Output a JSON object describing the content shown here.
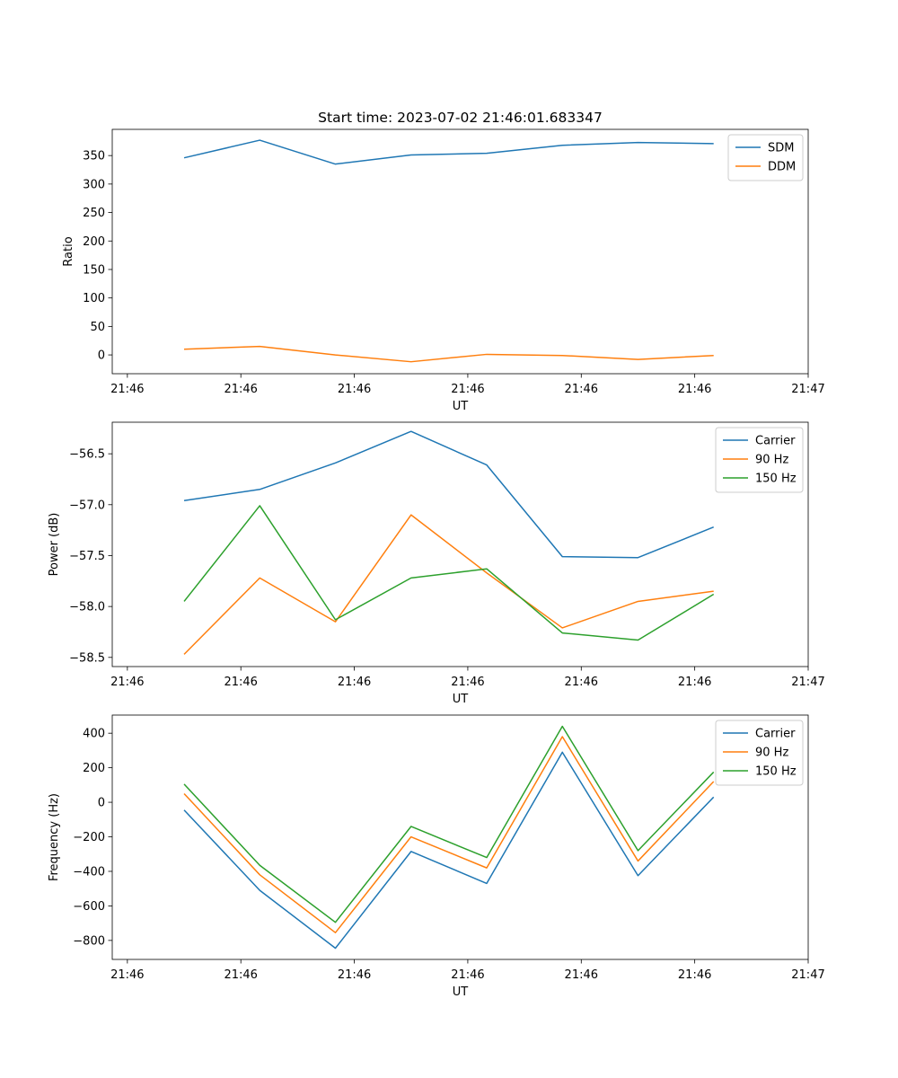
{
  "chart_data": [
    {
      "type": "line",
      "title": "Start time: 2023-07-02 21:46:01.683347",
      "xlabel": "UT",
      "ylabel": "Ratio",
      "x": [
        0,
        1,
        2,
        3,
        4,
        5,
        6,
        7
      ],
      "x_tick_positions": [
        -0.75,
        0.75,
        2.25,
        3.75,
        5.25,
        6.75,
        8.25
      ],
      "x_tick_labels": [
        "21:46",
        "21:46",
        "21:46",
        "21:46",
        "21:46",
        "21:46",
        "21:47"
      ],
      "xlim": [
        -0.95,
        8.25
      ],
      "ylim": [
        -33,
        396
      ],
      "y_ticks": [
        0,
        50,
        100,
        150,
        200,
        250,
        300,
        350
      ],
      "legend_position": "top-right",
      "series": [
        {
          "name": "SDM",
          "color": "#1f77b4",
          "values": [
            346,
            377,
            335,
            351,
            354,
            368,
            373,
            371
          ]
        },
        {
          "name": "DDM",
          "color": "#ff7f0e",
          "values": [
            10,
            15,
            0,
            -12,
            1,
            -1,
            -8,
            -1
          ]
        }
      ]
    },
    {
      "type": "line",
      "title": "",
      "xlabel": "UT",
      "ylabel": "Power (dB)",
      "x": [
        0,
        1,
        2,
        3,
        4,
        5,
        6,
        7
      ],
      "x_tick_positions": [
        -0.75,
        0.75,
        2.25,
        3.75,
        5.25,
        6.75,
        8.25
      ],
      "x_tick_labels": [
        "21:46",
        "21:46",
        "21:46",
        "21:46",
        "21:46",
        "21:46",
        "21:47"
      ],
      "xlim": [
        -0.95,
        8.25
      ],
      "ylim": [
        -58.59,
        -56.19
      ],
      "y_ticks": [
        -58.5,
        -58.0,
        -57.5,
        -57.0,
        -56.5
      ],
      "y_tick_labels": [
        "−58.5",
        "−58.0",
        "−57.5",
        "−57.0",
        "−56.5"
      ],
      "legend_position": "top-right",
      "series": [
        {
          "name": "Carrier",
          "color": "#1f77b4",
          "values": [
            -56.96,
            -56.85,
            -56.59,
            -56.28,
            -56.61,
            -57.51,
            -57.52,
            -57.22
          ]
        },
        {
          "name": "90 Hz",
          "color": "#ff7f0e",
          "values": [
            -58.47,
            -57.72,
            -58.15,
            -57.1,
            -57.67,
            -58.21,
            -57.95,
            -57.85
          ]
        },
        {
          "name": "150 Hz",
          "color": "#2ca02c",
          "values": [
            -57.95,
            -57.01,
            -58.13,
            -57.72,
            -57.63,
            -58.26,
            -58.33,
            -57.88
          ]
        }
      ]
    },
    {
      "type": "line",
      "title": "",
      "xlabel": "UT",
      "ylabel": "Frequency (Hz)",
      "x": [
        0,
        1,
        2,
        3,
        4,
        5,
        6,
        7
      ],
      "x_tick_positions": [
        -0.75,
        0.75,
        2.25,
        3.75,
        5.25,
        6.75,
        8.25
      ],
      "x_tick_labels": [
        "21:46",
        "21:46",
        "21:46",
        "21:46",
        "21:46",
        "21:46",
        "21:47"
      ],
      "xlim": [
        -0.95,
        8.25
      ],
      "ylim": [
        -910,
        505
      ],
      "y_ticks": [
        -800,
        -600,
        -400,
        -200,
        0,
        200,
        400
      ],
      "y_tick_labels": [
        "−800",
        "−600",
        "−400",
        "−200",
        "0",
        "200",
        "400"
      ],
      "legend_position": "top-right",
      "series": [
        {
          "name": "Carrier",
          "color": "#1f77b4",
          "values": [
            -45,
            -510,
            -845,
            -285,
            -470,
            290,
            -425,
            30
          ]
        },
        {
          "name": "90 Hz",
          "color": "#ff7f0e",
          "values": [
            50,
            -420,
            -755,
            -200,
            -380,
            380,
            -340,
            120
          ]
        },
        {
          "name": "150 Hz",
          "color": "#2ca02c",
          "values": [
            105,
            -365,
            -695,
            -140,
            -320,
            440,
            -280,
            175
          ]
        }
      ]
    }
  ]
}
